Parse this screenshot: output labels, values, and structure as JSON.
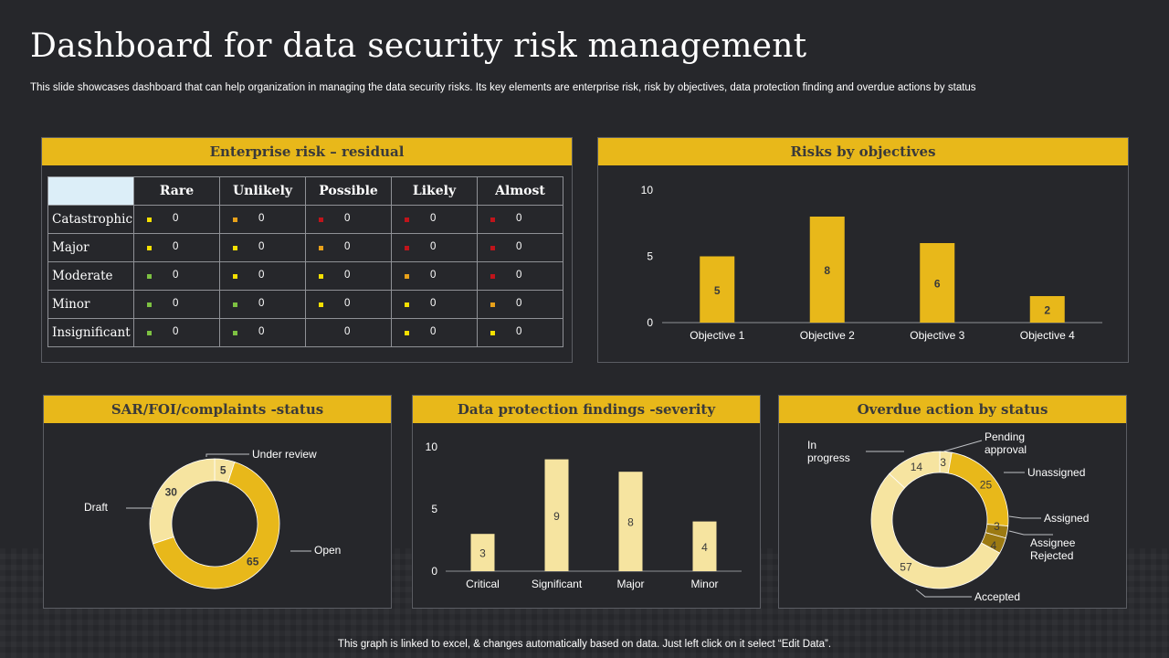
{
  "title": "Dashboard for data security risk management",
  "subtitle": "This slide showcases dashboard that can help organization in managing the data security risks. Its key elements are enterprise risk, risk by objectives, data protection finding and overdue actions by status",
  "footer": "This graph is linked to excel, & changes automatically based on data. Just left click on it select “Edit Data”.",
  "colors": {
    "accent": "#e8b81a",
    "background": "#26272b",
    "pale": "#f6e4a0",
    "red": "#c0141b",
    "orange": "#e8a11a",
    "yellow": "#f5e000",
    "green": "#7dc142",
    "dark_gold": "#9c7a12"
  },
  "risk_matrix": {
    "heading": "Enterprise risk – residual",
    "columns": [
      "Rare",
      "Unlikely",
      "Possible",
      "Likely",
      "Almost"
    ],
    "rows": [
      {
        "label": "Catastrophic",
        "cells": [
          {
            "v": "0",
            "c": "yellow"
          },
          {
            "v": "0",
            "c": "orange"
          },
          {
            "v": "0",
            "c": "red"
          },
          {
            "v": "0",
            "c": "red"
          },
          {
            "v": "0",
            "c": "red"
          }
        ]
      },
      {
        "label": "Major",
        "cells": [
          {
            "v": "0",
            "c": "yellow"
          },
          {
            "v": "0",
            "c": "yellow"
          },
          {
            "v": "0",
            "c": "orange"
          },
          {
            "v": "0",
            "c": "red"
          },
          {
            "v": "0",
            "c": "red"
          }
        ]
      },
      {
        "label": "Moderate",
        "cells": [
          {
            "v": "0",
            "c": "green"
          },
          {
            "v": "0",
            "c": "yellow"
          },
          {
            "v": "0",
            "c": "yellow"
          },
          {
            "v": "0",
            "c": "orange"
          },
          {
            "v": "0",
            "c": "red"
          }
        ]
      },
      {
        "label": "Minor",
        "cells": [
          {
            "v": "0",
            "c": "green"
          },
          {
            "v": "0",
            "c": "green"
          },
          {
            "v": "0",
            "c": "yellow"
          },
          {
            "v": "0",
            "c": "yellow"
          },
          {
            "v": "0",
            "c": "orange"
          }
        ]
      },
      {
        "label": "Insignificant",
        "cells": [
          {
            "v": "0",
            "c": "green"
          },
          {
            "v": "0",
            "c": "green"
          },
          {
            "v": "0",
            "c": "none"
          },
          {
            "v": "0",
            "c": "yellow"
          },
          {
            "v": "0",
            "c": "yellow"
          }
        ]
      }
    ]
  },
  "chart_data": [
    {
      "id": "objectives",
      "type": "bar",
      "title": "Risks by objectives",
      "categories": [
        "Objective 1",
        "Objective 2",
        "Objective 3",
        "Objective 4"
      ],
      "values": [
        5,
        8,
        6,
        2
      ],
      "yticks": [
        0,
        5,
        10
      ],
      "ylim": [
        0,
        10
      ]
    },
    {
      "id": "sar",
      "type": "pie",
      "title": "SAR/FOI/complaints -status",
      "labels": [
        "Under review",
        "Open",
        "Draft"
      ],
      "values": [
        5,
        65,
        30
      ]
    },
    {
      "id": "findings",
      "type": "bar",
      "title": "Data protection findings -severity",
      "categories": [
        "Critical",
        "Significant",
        "Major",
        "Minor"
      ],
      "values": [
        3,
        9,
        8,
        4
      ],
      "yticks": [
        0,
        5,
        10
      ],
      "ylim": [
        0,
        10
      ]
    },
    {
      "id": "overdue",
      "type": "pie",
      "title": "Overdue action by status",
      "labels": [
        "Pending approval",
        "Unassigned",
        "Assigned",
        "Assignee Rejected",
        "Accepted",
        "In progress"
      ],
      "values": [
        3,
        25,
        3,
        4,
        57,
        14
      ]
    }
  ]
}
